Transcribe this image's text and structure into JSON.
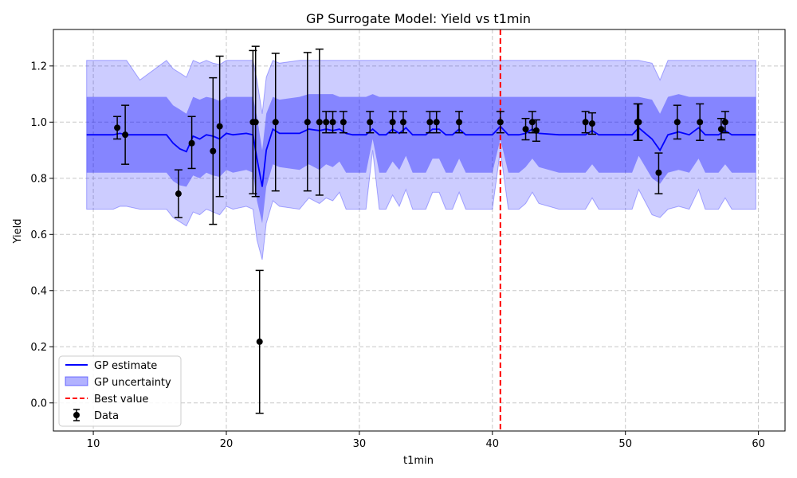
{
  "chart_data": {
    "type": "line",
    "title": "GP Surrogate Model: Yield vs t1min",
    "xlabel": "t1min",
    "ylabel": "Yield",
    "xlim": [
      7,
      62
    ],
    "ylim": [
      -0.1,
      1.33
    ],
    "xticks": [
      10,
      20,
      30,
      40,
      50,
      60
    ],
    "xtick_labels": [
      "10",
      "20",
      "30",
      "40",
      "50",
      "60"
    ],
    "yticks": [
      0.0,
      0.2,
      0.4,
      0.6,
      0.8,
      1.0,
      1.2
    ],
    "ytick_labels": [
      "0.0",
      "0.2",
      "0.4",
      "0.6",
      "0.8",
      "1.0",
      "1.2"
    ],
    "grid": true,
    "legend_position": "lower-left",
    "best_value": 40.6,
    "colors": {
      "gp_line": "#0000ff",
      "band_outer": "rgba(0,0,255,0.2)",
      "band_inner": "rgba(0,0,255,0.35)",
      "best_line": "#ff0000",
      "data": "#000000"
    },
    "series": [
      {
        "name": "GP estimate",
        "x": [
          9.5,
          11.5,
          12.0,
          12.5,
          13.5,
          15.5,
          16.0,
          16.5,
          17.0,
          17.5,
          18.0,
          18.5,
          19.0,
          19.5,
          20.0,
          20.5,
          21.5,
          22.0,
          22.3,
          22.7,
          23.0,
          23.5,
          24.0,
          25.5,
          26.2,
          27.0,
          27.5,
          28.0,
          28.5,
          29.0,
          29.5,
          30.5,
          31.0,
          31.5,
          32.0,
          32.5,
          33.0,
          33.5,
          34.0,
          35.0,
          35.5,
          36.0,
          36.5,
          37.0,
          37.5,
          38.0,
          40.0,
          40.6,
          41.2,
          42.0,
          42.5,
          43.0,
          43.5,
          45.0,
          47.0,
          47.5,
          48.0,
          50.5,
          51.0,
          52.0,
          52.6,
          53.2,
          54.0,
          54.8,
          55.5,
          56.0,
          57.0,
          57.5,
          58.0,
          59.8
        ],
        "y": [
          0.955,
          0.955,
          0.96,
          0.955,
          0.955,
          0.955,
          0.925,
          0.905,
          0.895,
          0.95,
          0.94,
          0.955,
          0.95,
          0.94,
          0.96,
          0.955,
          0.96,
          0.955,
          0.87,
          0.77,
          0.9,
          0.975,
          0.96,
          0.96,
          0.975,
          0.97,
          0.975,
          0.97,
          0.975,
          0.96,
          0.955,
          0.955,
          0.975,
          0.955,
          0.955,
          0.975,
          0.96,
          0.98,
          0.955,
          0.955,
          0.975,
          0.975,
          0.955,
          0.955,
          0.975,
          0.955,
          0.955,
          0.985,
          0.955,
          0.955,
          0.96,
          0.975,
          0.96,
          0.955,
          0.955,
          0.97,
          0.955,
          0.955,
          0.98,
          0.94,
          0.9,
          0.955,
          0.965,
          0.955,
          0.98,
          0.955,
          0.955,
          0.97,
          0.955,
          0.955
        ],
        "inner_lower": [
          0.82,
          0.82,
          0.82,
          0.82,
          0.82,
          0.82,
          0.79,
          0.775,
          0.77,
          0.81,
          0.8,
          0.82,
          0.81,
          0.805,
          0.83,
          0.82,
          0.83,
          0.82,
          0.72,
          0.64,
          0.77,
          0.85,
          0.84,
          0.83,
          0.85,
          0.83,
          0.85,
          0.84,
          0.86,
          0.82,
          0.82,
          0.82,
          0.94,
          0.82,
          0.82,
          0.86,
          0.83,
          0.88,
          0.82,
          0.82,
          0.87,
          0.87,
          0.82,
          0.82,
          0.87,
          0.82,
          0.82,
          0.94,
          0.82,
          0.82,
          0.84,
          0.87,
          0.84,
          0.82,
          0.82,
          0.85,
          0.82,
          0.82,
          0.88,
          0.8,
          0.78,
          0.82,
          0.83,
          0.82,
          0.87,
          0.82,
          0.82,
          0.85,
          0.82,
          0.82
        ],
        "inner_upper": [
          1.09,
          1.09,
          1.09,
          1.09,
          1.09,
          1.09,
          1.06,
          1.045,
          1.03,
          1.09,
          1.08,
          1.09,
          1.085,
          1.075,
          1.09,
          1.09,
          1.09,
          1.09,
          1.02,
          0.9,
          1.03,
          1.09,
          1.08,
          1.09,
          1.1,
          1.1,
          1.1,
          1.1,
          1.09,
          1.09,
          1.09,
          1.09,
          1.1,
          1.09,
          1.09,
          1.09,
          1.09,
          1.09,
          1.09,
          1.09,
          1.09,
          1.09,
          1.09,
          1.09,
          1.09,
          1.09,
          1.09,
          1.09,
          1.09,
          1.09,
          1.09,
          1.09,
          1.09,
          1.09,
          1.09,
          1.09,
          1.09,
          1.09,
          1.09,
          1.08,
          1.03,
          1.09,
          1.1,
          1.09,
          1.09,
          1.09,
          1.09,
          1.09,
          1.09,
          1.09
        ],
        "outer_lower": [
          0.69,
          0.69,
          0.7,
          0.7,
          0.69,
          0.69,
          0.66,
          0.645,
          0.63,
          0.68,
          0.67,
          0.69,
          0.68,
          0.67,
          0.7,
          0.69,
          0.7,
          0.69,
          0.58,
          0.51,
          0.64,
          0.72,
          0.7,
          0.69,
          0.73,
          0.71,
          0.73,
          0.72,
          0.75,
          0.69,
          0.69,
          0.69,
          0.9,
          0.69,
          0.69,
          0.74,
          0.7,
          0.76,
          0.69,
          0.69,
          0.75,
          0.75,
          0.69,
          0.69,
          0.75,
          0.69,
          0.69,
          0.9,
          0.69,
          0.69,
          0.71,
          0.75,
          0.71,
          0.69,
          0.69,
          0.73,
          0.69,
          0.69,
          0.76,
          0.67,
          0.66,
          0.69,
          0.7,
          0.69,
          0.76,
          0.69,
          0.69,
          0.73,
          0.69,
          0.69
        ],
        "outer_upper": [
          1.22,
          1.22,
          1.22,
          1.22,
          1.15,
          1.22,
          1.19,
          1.175,
          1.16,
          1.22,
          1.21,
          1.22,
          1.21,
          1.205,
          1.22,
          1.22,
          1.22,
          1.22,
          1.15,
          1.03,
          1.16,
          1.22,
          1.21,
          1.22,
          1.22,
          1.22,
          1.22,
          1.22,
          1.22,
          1.22,
          1.22,
          1.22,
          1.22,
          1.22,
          1.22,
          1.22,
          1.22,
          1.22,
          1.22,
          1.22,
          1.22,
          1.22,
          1.22,
          1.22,
          1.22,
          1.22,
          1.22,
          1.22,
          1.22,
          1.22,
          1.22,
          1.22,
          1.22,
          1.22,
          1.22,
          1.22,
          1.22,
          1.22,
          1.22,
          1.21,
          1.15,
          1.22,
          1.22,
          1.22,
          1.22,
          1.22,
          1.22,
          1.22,
          1.22,
          1.22
        ]
      },
      {
        "name": "GP uncertainty"
      },
      {
        "name": "Best value"
      },
      {
        "name": "Data",
        "points": [
          {
            "x": 11.8,
            "y": 0.98,
            "lo": 0.94,
            "hi": 1.02
          },
          {
            "x": 12.4,
            "y": 0.955,
            "lo": 0.85,
            "hi": 1.06
          },
          {
            "x": 16.4,
            "y": 0.745,
            "lo": 0.66,
            "hi": 0.83
          },
          {
            "x": 17.4,
            "y": 0.925,
            "lo": 0.835,
            "hi": 1.02
          },
          {
            "x": 19.0,
            "y": 0.897,
            "lo": 0.636,
            "hi": 1.158
          },
          {
            "x": 19.5,
            "y": 0.985,
            "lo": 0.735,
            "hi": 1.235
          },
          {
            "x": 22.0,
            "y": 1.0,
            "lo": 0.745,
            "hi": 1.255
          },
          {
            "x": 22.2,
            "y": 1.0,
            "lo": 0.735,
            "hi": 1.27
          },
          {
            "x": 22.5,
            "y": 0.218,
            "lo": -0.037,
            "hi": 0.472
          },
          {
            "x": 23.7,
            "y": 1.0,
            "lo": 0.755,
            "hi": 1.245
          },
          {
            "x": 26.1,
            "y": 1.0,
            "lo": 0.755,
            "hi": 1.248
          },
          {
            "x": 27.0,
            "y": 1.0,
            "lo": 0.74,
            "hi": 1.26
          },
          {
            "x": 27.5,
            "y": 1.0,
            "lo": 0.962,
            "hi": 1.038
          },
          {
            "x": 28.0,
            "y": 1.0,
            "lo": 0.962,
            "hi": 1.038
          },
          {
            "x": 28.8,
            "y": 1.0,
            "lo": 0.962,
            "hi": 1.038
          },
          {
            "x": 30.8,
            "y": 1.0,
            "lo": 0.962,
            "hi": 1.038
          },
          {
            "x": 32.5,
            "y": 1.0,
            "lo": 0.962,
            "hi": 1.038
          },
          {
            "x": 33.3,
            "y": 1.0,
            "lo": 0.962,
            "hi": 1.038
          },
          {
            "x": 35.3,
            "y": 1.0,
            "lo": 0.962,
            "hi": 1.038
          },
          {
            "x": 35.8,
            "y": 1.0,
            "lo": 0.962,
            "hi": 1.038
          },
          {
            "x": 37.5,
            "y": 1.0,
            "lo": 0.962,
            "hi": 1.038
          },
          {
            "x": 40.6,
            "y": 1.0,
            "lo": 0.962,
            "hi": 1.038
          },
          {
            "x": 42.5,
            "y": 0.975,
            "lo": 0.937,
            "hi": 1.013
          },
          {
            "x": 43.0,
            "y": 1.0,
            "lo": 0.962,
            "hi": 1.038
          },
          {
            "x": 43.3,
            "y": 0.97,
            "lo": 0.932,
            "hi": 1.008
          },
          {
            "x": 47.0,
            "y": 1.0,
            "lo": 0.962,
            "hi": 1.038
          },
          {
            "x": 47.5,
            "y": 0.995,
            "lo": 0.957,
            "hi": 1.033
          },
          {
            "x": 50.9,
            "y": 1.0,
            "lo": 0.935,
            "hi": 1.065
          },
          {
            "x": 51.0,
            "y": 1.0,
            "lo": 0.935,
            "hi": 1.065
          },
          {
            "x": 52.5,
            "y": 0.82,
            "lo": 0.745,
            "hi": 0.89
          },
          {
            "x": 53.9,
            "y": 1.0,
            "lo": 0.94,
            "hi": 1.06
          },
          {
            "x": 55.6,
            "y": 1.0,
            "lo": 0.935,
            "hi": 1.065
          },
          {
            "x": 57.2,
            "y": 0.975,
            "lo": 0.937,
            "hi": 1.013
          },
          {
            "x": 57.5,
            "y": 1.0,
            "lo": 0.962,
            "hi": 1.038
          }
        ]
      }
    ],
    "legend": [
      "GP estimate",
      "GP uncertainty",
      "Best value",
      "Data"
    ]
  }
}
